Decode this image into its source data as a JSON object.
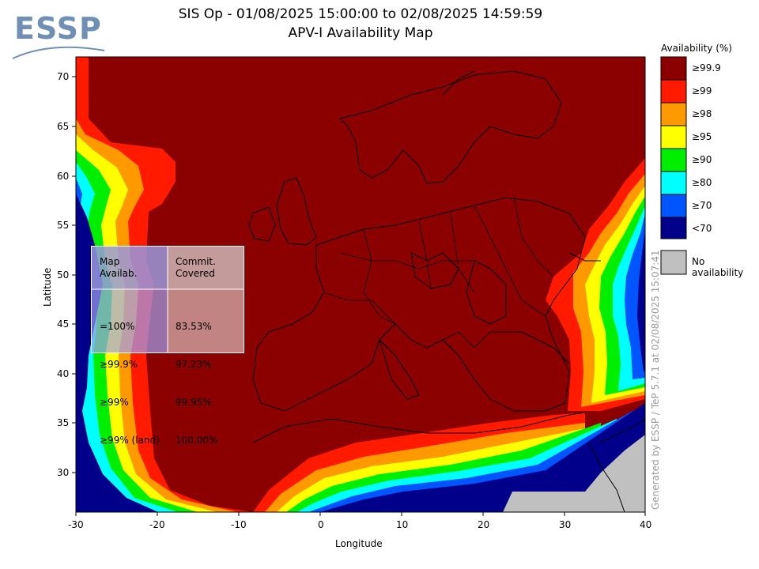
{
  "title_line1": "SIS Op - 01/08/2025 15:00:00 to 02/08/2025 14:59:59",
  "title_line2": "APV-I Availability Map",
  "logo_text": "ESSP",
  "axes": {
    "xlabel": "Longitude",
    "ylabel": "Latitude",
    "xticks": [
      "-30",
      "-20",
      "-10",
      "0",
      "10",
      "20",
      "30",
      "40"
    ],
    "yticks": [
      "70",
      "65",
      "60",
      "55",
      "50",
      "45",
      "40",
      "35",
      "30"
    ]
  },
  "legend": {
    "title": "Availability (%)",
    "items": [
      {
        "label": "≥99.9",
        "color": "#8b0000"
      },
      {
        "label": "≥99",
        "color": "#ff1a00"
      },
      {
        "label": "≥98",
        "color": "#ff9900"
      },
      {
        "label": "≥95",
        "color": "#ffff00"
      },
      {
        "label": "≥90",
        "color": "#00ee00"
      },
      {
        "label": "≥80",
        "color": "#00ffff"
      },
      {
        "label": "≥70",
        "color": "#0055ff"
      },
      {
        "label": "<70",
        "color": "#00008b"
      }
    ],
    "no_availability_label": "No availability",
    "no_availability_color": "#c0c0c0"
  },
  "table": {
    "col1_header": "Map\nAvailab.",
    "col2_header": "Commit.\nCovered",
    "rows": [
      {
        "map": "=100%",
        "covered": "83.53%"
      },
      {
        "map": "≥99.9%",
        "covered": "97.23%"
      },
      {
        "map": "≥99%",
        "covered": "99.95%"
      },
      {
        "map": "≥99% (land)",
        "covered": "100.00%"
      }
    ]
  },
  "side_text": "Generated by ESSP / TeP 5.7.1 at 02/08/2025 15:07:41",
  "chart_data": {
    "type": "heatmap",
    "title": "APV-I Availability Map",
    "xlabel": "Longitude",
    "ylabel": "Latitude",
    "xlim": [
      -30,
      40
    ],
    "ylim": [
      26,
      72
    ],
    "grid": false,
    "legend_placement": "right"
  }
}
